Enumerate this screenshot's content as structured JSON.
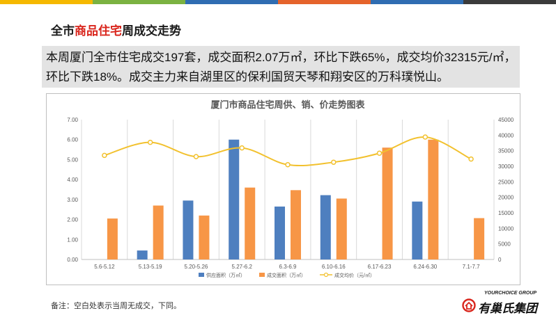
{
  "colors": {
    "stripes": [
      "#f5b800",
      "#7bb241",
      "#2f6db2",
      "#e5632b",
      "#2f6db2",
      "#3b3b3b"
    ],
    "supply": "#4e7fbf",
    "deal_area": "#f79646",
    "avg_price": "#f2c12e",
    "accent_red": "#d9251c"
  },
  "heading": {
    "prefix": "全市",
    "highlight": "商品住宅",
    "suffix": "周成交走势"
  },
  "summary": {
    "line1": "本周厦门全市住宅成交197套，成交面积2.07万㎡，环比下跌65%，成交均价32315元/㎡，",
    "line2": "环比下跌18%。成交主力来自湖里区的保利国贸天琴和翔安区的万科璞悦山。"
  },
  "chart_data": {
    "type": "bar",
    "title": "厦门市商品住宅周供、销、价走势图表",
    "categories": [
      "5.6-5.12",
      "5.13-5.19",
      "5.20-5.26",
      "5.27-6.2",
      "6.3-6.9",
      "6.10-6.16",
      "6.17-6.23",
      "6.24-6.30",
      "7.1-7.7"
    ],
    "series": [
      {
        "name": "供应面积（万㎡）",
        "type": "bar",
        "axis": "left",
        "values": [
          null,
          0.45,
          2.95,
          6.0,
          2.65,
          3.22,
          null,
          2.9,
          null
        ]
      },
      {
        "name": "成交面积（万㎡）",
        "type": "bar",
        "axis": "left",
        "values": [
          2.05,
          2.7,
          2.2,
          3.6,
          3.47,
          3.05,
          5.6,
          6.0,
          2.07
        ]
      },
      {
        "name": "成交均价（元/㎡）",
        "type": "line",
        "axis": "right",
        "values": [
          33500,
          37700,
          33100,
          35900,
          30500,
          31300,
          34200,
          39400,
          32315
        ]
      }
    ],
    "y_left": {
      "min": 0,
      "max": 7,
      "ticks": [
        "0.00",
        "1.00",
        "2.00",
        "3.00",
        "4.00",
        "5.00",
        "6.00",
        "7.00"
      ]
    },
    "y_right": {
      "min": 0,
      "max": 45000,
      "ticks": [
        "0",
        "5000",
        "10000",
        "15000",
        "20000",
        "25000",
        "30000",
        "35000",
        "40000",
        "45000"
      ]
    },
    "grid": "vertical",
    "legend_position": "bottom"
  },
  "note": "备注：空白处表示当周无成交，下同。",
  "logo": {
    "sub": "YOURCHOICE GROUP",
    "name": "有巢氏集团"
  }
}
